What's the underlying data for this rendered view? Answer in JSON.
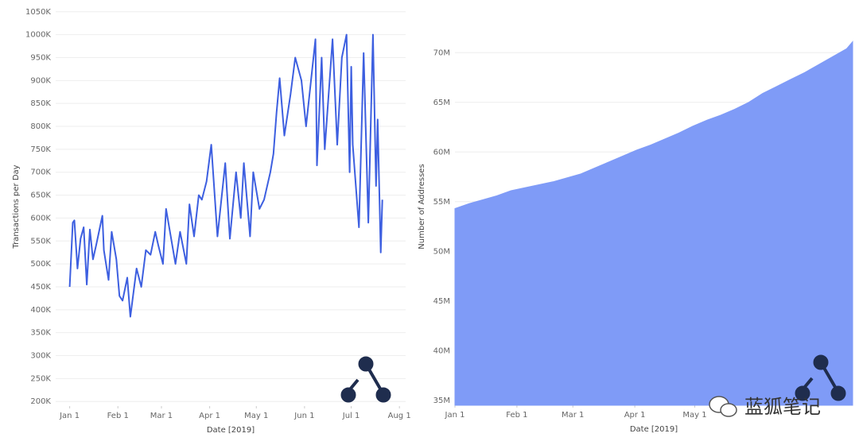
{
  "chart_data": [
    {
      "type": "line",
      "y_label": "Transactions per Day",
      "x_label": "Date [2019]",
      "color": "#3d5fe0",
      "grid": true,
      "x": [
        "2019-01-01",
        "2019-01-03",
        "2019-01-04",
        "2019-01-06",
        "2019-01-08",
        "2019-01-10",
        "2019-01-12",
        "2019-01-14",
        "2019-01-16",
        "2019-01-18",
        "2019-01-22",
        "2019-01-23",
        "2019-01-26",
        "2019-01-28",
        "2019-01-31",
        "2019-02-02",
        "2019-02-04",
        "2019-02-07",
        "2019-02-09",
        "2019-02-13",
        "2019-02-16",
        "2019-02-19",
        "2019-02-22",
        "2019-02-25",
        "2019-02-27",
        "2019-03-02",
        "2019-03-04",
        "2019-03-07",
        "2019-03-10",
        "2019-03-13",
        "2019-03-17",
        "2019-03-19",
        "2019-03-22",
        "2019-03-25",
        "2019-03-27",
        "2019-03-30",
        "2019-04-02",
        "2019-04-06",
        "2019-04-11",
        "2019-04-14",
        "2019-04-18",
        "2019-04-21",
        "2019-04-23",
        "2019-04-27",
        "2019-04-29",
        "2019-05-03",
        "2019-05-06",
        "2019-05-10",
        "2019-05-12",
        "2019-05-14",
        "2019-05-16",
        "2019-05-19",
        "2019-05-23",
        "2019-05-26",
        "2019-05-30",
        "2019-06-02",
        "2019-06-08",
        "2019-06-09",
        "2019-06-12",
        "2019-06-14",
        "2019-06-19",
        "2019-06-22",
        "2019-06-25",
        "2019-06-28",
        "2019-06-30",
        "2019-07-01",
        "2019-07-02",
        "2019-07-06",
        "2019-07-09",
        "2019-07-12",
        "2019-07-15",
        "2019-07-17",
        "2019-07-18",
        "2019-07-20",
        "2019-07-21"
      ],
      "values": [
        450000,
        590000,
        595000,
        490000,
        555000,
        580000,
        455000,
        575000,
        510000,
        540000,
        605000,
        530000,
        465000,
        570000,
        510000,
        430000,
        420000,
        470000,
        385000,
        490000,
        450000,
        530000,
        520000,
        570000,
        540000,
        500000,
        620000,
        560000,
        500000,
        570000,
        500000,
        630000,
        560000,
        650000,
        640000,
        680000,
        760000,
        560000,
        720000,
        555000,
        700000,
        600000,
        720000,
        560000,
        700000,
        620000,
        640000,
        700000,
        740000,
        830000,
        905000,
        780000,
        870000,
        950000,
        900000,
        800000,
        990000,
        715000,
        950000,
        750000,
        990000,
        760000,
        950000,
        1000000,
        700000,
        930000,
        760000,
        580000,
        960000,
        590000,
        1000000,
        670000,
        815000,
        525000,
        640000
      ],
      "xlim": [
        "2018-12-23",
        "2019-08-05"
      ],
      "xticks": [
        {
          "value": "2019-01-01",
          "label": "Jan 1"
        },
        {
          "value": "2019-02-01",
          "label": "Feb 1"
        },
        {
          "value": "2019-03-01",
          "label": "Mar 1"
        },
        {
          "value": "2019-04-01",
          "label": "Apr 1"
        },
        {
          "value": "2019-05-01",
          "label": "May 1"
        },
        {
          "value": "2019-06-01",
          "label": "Jun 1"
        },
        {
          "value": "2019-07-01",
          "label": "Jul 1"
        },
        {
          "value": "2019-08-01",
          "label": "Aug 1"
        }
      ],
      "ylim": [
        190000,
        1060000
      ],
      "yticks": [
        {
          "value": 200000,
          "label": "200K"
        },
        {
          "value": 250000,
          "label": "250K"
        },
        {
          "value": 300000,
          "label": "300K"
        },
        {
          "value": 350000,
          "label": "350K"
        },
        {
          "value": 400000,
          "label": "400K"
        },
        {
          "value": 450000,
          "label": "450K"
        },
        {
          "value": 500000,
          "label": "500K"
        },
        {
          "value": 550000,
          "label": "550K"
        },
        {
          "value": 600000,
          "label": "600K"
        },
        {
          "value": 650000,
          "label": "650K"
        },
        {
          "value": 700000,
          "label": "700K"
        },
        {
          "value": 750000,
          "label": "750K"
        },
        {
          "value": 800000,
          "label": "800K"
        },
        {
          "value": 850000,
          "label": "850K"
        },
        {
          "value": 900000,
          "label": "900K"
        },
        {
          "value": 950000,
          "label": "950K"
        },
        {
          "value": 1000000,
          "label": "1000K"
        },
        {
          "value": 1050000,
          "label": "1050K"
        }
      ]
    },
    {
      "type": "area",
      "y_label": "Number of Addresses",
      "x_label": "Date [2019]",
      "color": "#7f9bf7",
      "grid": true,
      "x": [
        "2019-01-01",
        "2019-01-08",
        "2019-01-15",
        "2019-01-22",
        "2019-01-29",
        "2019-02-05",
        "2019-02-12",
        "2019-02-19",
        "2019-02-26",
        "2019-03-05",
        "2019-03-12",
        "2019-03-19",
        "2019-03-26",
        "2019-04-02",
        "2019-04-09",
        "2019-04-16",
        "2019-04-23",
        "2019-04-30",
        "2019-05-07",
        "2019-05-14",
        "2019-05-21",
        "2019-05-28",
        "2019-06-04",
        "2019-06-11",
        "2019-06-18",
        "2019-06-25",
        "2019-07-02",
        "2019-07-09",
        "2019-07-16",
        "2019-07-19"
      ],
      "values": [
        54300000,
        54800000,
        55200000,
        55600000,
        56100000,
        56400000,
        56700000,
        57000000,
        57400000,
        57800000,
        58400000,
        59000000,
        59600000,
        60200000,
        60700000,
        61300000,
        61900000,
        62600000,
        63200000,
        63700000,
        64300000,
        65000000,
        65900000,
        66600000,
        67300000,
        68000000,
        68800000,
        69600000,
        70400000,
        71100000
      ],
      "xlim": [
        "2019-01-01",
        "2019-07-19"
      ],
      "xticks": [
        {
          "value": "2019-01-01",
          "label": "Jan 1"
        },
        {
          "value": "2019-02-01",
          "label": "Feb 1"
        },
        {
          "value": "2019-03-01",
          "label": "Mar 1"
        },
        {
          "value": "2019-04-01",
          "label": "Apr 1"
        },
        {
          "value": "2019-05-01",
          "label": "May 1"
        }
      ],
      "ylim": [
        34500000,
        74500000
      ],
      "yticks": [
        {
          "value": 35000000,
          "label": "35M"
        },
        {
          "value": 40000000,
          "label": "40M"
        },
        {
          "value": 45000000,
          "label": "45M"
        },
        {
          "value": 50000000,
          "label": "50M"
        },
        {
          "value": 55000000,
          "label": "55M"
        },
        {
          "value": 60000000,
          "label": "60M"
        },
        {
          "value": 65000000,
          "label": "65M"
        },
        {
          "value": 70000000,
          "label": "70M"
        }
      ]
    }
  ],
  "watermark": "蓝狐笔记"
}
